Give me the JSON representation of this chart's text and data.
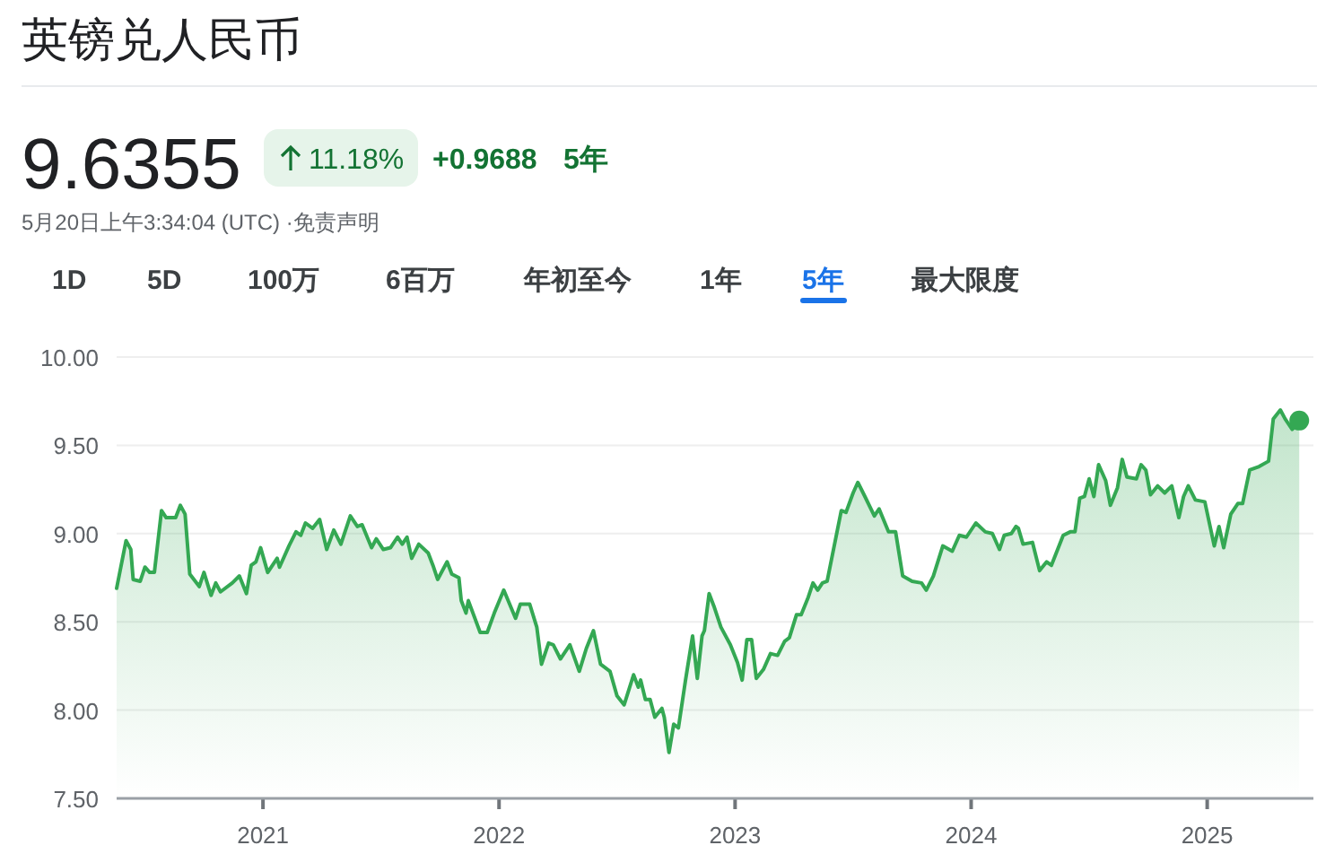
{
  "chart_data": {
    "type": "area",
    "title": "英镑兑人民币",
    "annotations": [
      "9.6355",
      "11.18%",
      "+0.9688",
      "5年",
      "5月20日上午3:34:04 (UTC) ·免责声明",
      "1D",
      "5D",
      "100万",
      "6百万",
      "年初至今",
      "1年",
      "5年",
      "最大限度"
    ],
    "xlim": [
      2020.38,
      2025.45
    ],
    "xticks": [
      2021,
      2022,
      2023,
      2024,
      2025
    ],
    "ylim": [
      7.5,
      10
    ],
    "yticks": [
      {
        "value": 7.5,
        "label": "7.50"
      },
      {
        "value": 8,
        "label": "8.00"
      },
      {
        "value": 8.5,
        "label": "8.50"
      },
      {
        "value": 9,
        "label": "9.00"
      },
      {
        "value": 9.5,
        "label": "9.50"
      },
      {
        "value": 10,
        "label": "10.00"
      }
    ],
    "grid": "y",
    "series": [
      {
        "color": "#34a853",
        "x": [
          2020.38,
          2020.42,
          2020.44,
          2020.45,
          2020.48,
          2020.5,
          2020.52,
          2020.54,
          2020.57,
          2020.59,
          2020.63,
          2020.65,
          2020.67,
          2020.69,
          2020.73,
          2020.75,
          2020.78,
          2020.8,
          2020.82,
          2020.87,
          2020.9,
          2020.93,
          2020.95,
          2020.97,
          2020.99,
          2021.02,
          2021.06,
          2021.07,
          2021.11,
          2021.14,
          2021.16,
          2021.18,
          2021.21,
          2021.24,
          2021.27,
          2021.3,
          2021.33,
          2021.37,
          2021.4,
          2021.42,
          2021.46,
          2021.48,
          2021.51,
          2021.54,
          2021.57,
          2021.59,
          2021.61,
          2021.63,
          2021.66,
          2021.7,
          2021.72,
          2021.74,
          2021.78,
          2021.8,
          2021.83,
          2021.84,
          2021.86,
          2021.87,
          2021.92,
          2021.95,
          2021.98,
          2022.02,
          2022.07,
          2022.09,
          2022.13,
          2022.16,
          2022.18,
          2022.21,
          2022.23,
          2022.26,
          2022.3,
          2022.34,
          2022.37,
          2022.4,
          2022.43,
          2022.47,
          2022.5,
          2022.53,
          2022.57,
          2022.59,
          2022.6,
          2022.62,
          2022.64,
          2022.66,
          2022.69,
          2022.7,
          2022.72,
          2022.74,
          2022.76,
          2022.79,
          2022.82,
          2022.84,
          2022.86,
          2022.87,
          2022.89,
          2022.91,
          2022.94,
          2022.98,
          2023.01,
          2023.03,
          2023.05,
          2023.07,
          2023.09,
          2023.12,
          2023.15,
          2023.18,
          2023.21,
          2023.23,
          2023.26,
          2023.28,
          2023.31,
          2023.33,
          2023.35,
          2023.37,
          2023.39,
          2023.45,
          2023.47,
          2023.5,
          2023.52,
          2023.55,
          2023.59,
          2023.61,
          2023.65,
          2023.68,
          2023.71,
          2023.75,
          2023.79,
          2023.81,
          2023.84,
          2023.88,
          2023.92,
          2023.95,
          2023.98,
          2024.02,
          2024.06,
          2024.09,
          2024.12,
          2024.14,
          2024.17,
          2024.19,
          2024.2,
          2024.22,
          2024.26,
          2024.29,
          2024.32,
          2024.34,
          2024.39,
          2024.42,
          2024.44,
          2024.46,
          2024.48,
          2024.5,
          2024.52,
          2024.54,
          2024.57,
          2024.59,
          2024.62,
          2024.64,
          2024.66,
          2024.7,
          2024.72,
          2024.74,
          2024.76,
          2024.79,
          2024.82,
          2024.85,
          2024.88,
          2024.9,
          2024.92,
          2024.95,
          2024.99,
          2025.03,
          2025.05,
          2025.07,
          2025.1,
          2025.13,
          2025.15,
          2025.18,
          2025.22,
          2025.26,
          2025.28,
          2025.31,
          2025.33,
          2025.36,
          2025.39
        ],
        "values": [
          8.69,
          8.96,
          8.91,
          8.74,
          8.73,
          8.81,
          8.78,
          8.78,
          9.13,
          9.09,
          9.09,
          9.16,
          9.11,
          8.77,
          8.7,
          8.78,
          8.65,
          8.72,
          8.67,
          8.72,
          8.76,
          8.66,
          8.82,
          8.84,
          8.92,
          8.78,
          8.86,
          8.81,
          8.93,
          9.01,
          8.99,
          9.06,
          9.03,
          9.08,
          8.91,
          9.02,
          8.94,
          9.1,
          9.04,
          9.05,
          8.92,
          8.97,
          8.91,
          8.92,
          8.98,
          8.94,
          8.98,
          8.86,
          8.94,
          8.89,
          8.82,
          8.74,
          8.84,
          8.77,
          8.75,
          8.62,
          8.55,
          8.62,
          8.44,
          8.44,
          8.55,
          8.68,
          8.52,
          8.6,
          8.6,
          8.47,
          8.26,
          8.38,
          8.37,
          8.29,
          8.37,
          8.22,
          8.35,
          8.45,
          8.26,
          8.22,
          8.08,
          8.03,
          8.2,
          8.13,
          8.17,
          8.06,
          8.06,
          7.96,
          8.01,
          7.96,
          7.76,
          7.92,
          7.9,
          8.17,
          8.42,
          8.18,
          8.42,
          8.45,
          8.66,
          8.59,
          8.47,
          8.37,
          8.27,
          8.17,
          8.4,
          8.4,
          8.18,
          8.23,
          8.32,
          8.31,
          8.39,
          8.41,
          8.54,
          8.54,
          8.64,
          8.72,
          8.68,
          8.72,
          8.73,
          9.13,
          9.12,
          9.23,
          9.29,
          9.21,
          9.1,
          9.14,
          9.01,
          9.01,
          8.76,
          8.73,
          8.72,
          8.68,
          8.76,
          8.93,
          8.9,
          8.99,
          8.98,
          9.06,
          9.01,
          9.0,
          8.91,
          8.99,
          9.0,
          9.04,
          9.03,
          8.94,
          8.95,
          8.79,
          8.84,
          8.82,
          8.99,
          9.01,
          9.01,
          9.2,
          9.21,
          9.31,
          9.21,
          9.39,
          9.3,
          9.16,
          9.26,
          9.42,
          9.32,
          9.31,
          9.39,
          9.36,
          9.22,
          9.27,
          9.23,
          9.27,
          9.09,
          9.21,
          9.27,
          9.19,
          9.18,
          8.93,
          9.04,
          8.92,
          9.11,
          9.17,
          9.17,
          9.36,
          9.38,
          9.41,
          9.65,
          9.7,
          9.65,
          9.59,
          9.64
        ]
      },
      {
        "type": "scatter",
        "marker": "circle",
        "color": "#34a853",
        "x": [
          2025.39
        ],
        "values": [
          9.64
        ]
      }
    ]
  }
}
